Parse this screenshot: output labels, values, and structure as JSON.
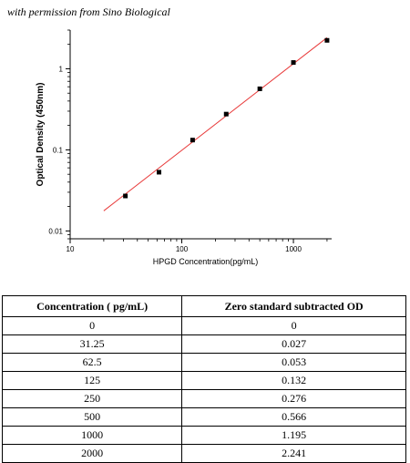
{
  "credit": "with permission from Sino Biological",
  "chart_data": {
    "type": "scatter",
    "xlabel": "HPGD  Concentration(pg/mL)",
    "ylabel": "Optical Density (450nm)",
    "xscale": "log",
    "yscale": "log",
    "xlim": [
      10,
      2200
    ],
    "ylim": [
      0.008,
      3
    ],
    "xticks": [
      10,
      100,
      1000
    ],
    "xtick_labels": [
      "10",
      "100",
      "1000"
    ],
    "yticks": [
      0.01,
      0.1,
      1
    ],
    "ytick_labels": [
      "0.01",
      "0.1",
      "1"
    ],
    "marker_color": "#000000",
    "fit_color": "#e83a3a",
    "series": [
      {
        "x": [
          31.25,
          62.5,
          125,
          250,
          500,
          1000,
          2000
        ],
        "y": [
          0.027,
          0.053,
          0.132,
          0.276,
          0.566,
          1.195,
          2.241
        ]
      }
    ],
    "fit_line": {
      "x": [
        20,
        2000
      ],
      "y": [
        0.0177,
        2.42
      ]
    }
  },
  "table": {
    "headers": [
      "Concentration ( pg/mL)",
      "Zero standard subtracted OD"
    ],
    "rows": [
      [
        "0",
        "0"
      ],
      [
        "31.25",
        "0.027"
      ],
      [
        "62.5",
        "0.053"
      ],
      [
        "125",
        "0.132"
      ],
      [
        "250",
        "0.276"
      ],
      [
        "500",
        "0.566"
      ],
      [
        "1000",
        "1.195"
      ],
      [
        "2000",
        "2.241"
      ]
    ]
  }
}
